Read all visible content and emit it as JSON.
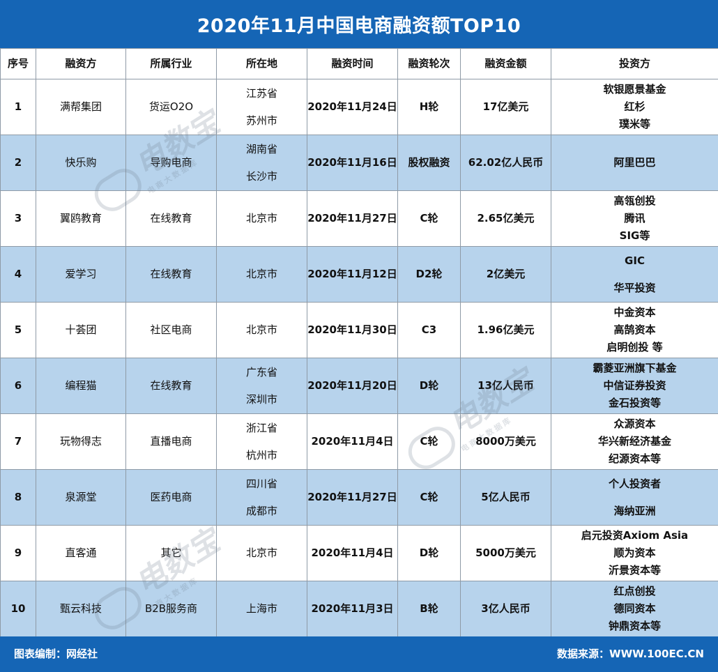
{
  "title": "2020年11月中国电商融资额TOP10",
  "headers": [
    "序号",
    "融资方",
    "所属行业",
    "所在地",
    "融资时间",
    "融资轮次",
    "融资金额",
    "投资方"
  ],
  "rows": [
    {
      "no": "1",
      "company": "满帮集团",
      "industry": "货运O2O",
      "location": [
        "江苏省",
        "苏州市"
      ],
      "date": "2020年11月24日",
      "round": "H轮",
      "amount": "17亿美元",
      "investors": [
        "软银愿景基金",
        "红杉",
        "璞米等"
      ]
    },
    {
      "no": "2",
      "company": "快乐购",
      "industry": "导购电商",
      "location": [
        "湖南省",
        "长沙市"
      ],
      "date": "2020年11月16日",
      "round": "股权融资",
      "amount": "62.02亿人民币",
      "investors": [
        "阿里巴巴"
      ]
    },
    {
      "no": "3",
      "company": "翼鸥教育",
      "industry": "在线教育",
      "location": [
        "北京市"
      ],
      "date": "2020年11月27日",
      "round": "C轮",
      "amount": "2.65亿美元",
      "investors": [
        "高瓴创投",
        "腾讯",
        "SIG等"
      ]
    },
    {
      "no": "4",
      "company": "爱学习",
      "industry": "在线教育",
      "location": [
        "北京市"
      ],
      "date": "2020年11月12日",
      "round": "D2轮",
      "amount": "2亿美元",
      "investors": [
        "GIC",
        "华平投资"
      ]
    },
    {
      "no": "5",
      "company": "十荟团",
      "industry": "社区电商",
      "location": [
        "北京市"
      ],
      "date": "2020年11月30日",
      "round": "C3",
      "amount": "1.96亿美元",
      "investors": [
        "中金资本",
        "高鹄资本",
        "启明创投 等"
      ]
    },
    {
      "no": "6",
      "company": "编程猫",
      "industry": "在线教育",
      "location": [
        "广东省",
        "深圳市"
      ],
      "date": "2020年11月20日",
      "round": "D轮",
      "amount": "13亿人民币",
      "investors": [
        "霸菱亚洲旗下基金",
        "中信证券投资",
        "金石投资等"
      ]
    },
    {
      "no": "7",
      "company": "玩物得志",
      "industry": "直播电商",
      "location": [
        "浙江省",
        "杭州市"
      ],
      "date": "2020年11月4日",
      "round": "C轮",
      "amount": "8000万美元",
      "investors": [
        "众源资本",
        "华兴新经济基金",
        "纪源资本等"
      ]
    },
    {
      "no": "8",
      "company": "泉源堂",
      "industry": "医药电商",
      "location": [
        "四川省",
        "成都市"
      ],
      "date": "2020年11月27日",
      "round": "C轮",
      "amount": "5亿人民币",
      "investors": [
        "个人投资者",
        "海纳亚洲"
      ]
    },
    {
      "no": "9",
      "company": "直客通",
      "industry": "其它",
      "location": [
        "北京市"
      ],
      "date": "2020年11月4日",
      "round": "D轮",
      "amount": "5000万美元",
      "investors": [
        "启元投资Axiom Asia",
        "顺为资本",
        "沂景资本等"
      ]
    },
    {
      "no": "10",
      "company": "甄云科技",
      "industry": "B2B服务商",
      "location": [
        "上海市"
      ],
      "date": "2020年11月3日",
      "round": "B轮",
      "amount": "3亿人民币",
      "investors": [
        "红点创投",
        "德同资本",
        "钟鼎资本等"
      ]
    }
  ],
  "footer": {
    "left": "图表编制：网经社",
    "right": "数据来源：WWW.100EC.CN"
  },
  "watermark": {
    "brand": "电数宝",
    "sub": "电商大数据库"
  },
  "chart_data": {
    "type": "table",
    "title": "2020年11月中国电商融资额TOP10",
    "columns": [
      "序号",
      "融资方",
      "所属行业",
      "所在地",
      "融资时间",
      "融资轮次",
      "融资金额",
      "投资方"
    ]
  },
  "colors": {
    "header_blue": "#1565b5",
    "alt_row": "#b7d3ec",
    "border": "#8e9aa6"
  }
}
